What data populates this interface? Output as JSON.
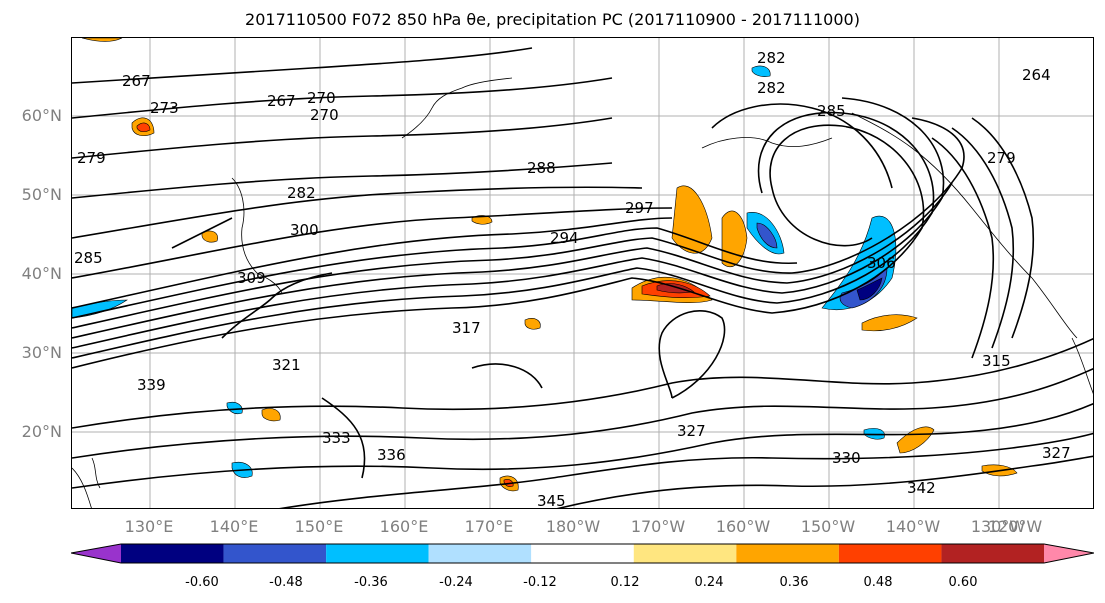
{
  "title": "2017110500 F072 850 hPa θe, precipitation PC (2017110900 - 2017111000)",
  "lat_labels": [
    "60°N",
    "50°N",
    "40°N",
    "30°N",
    "20°N"
  ],
  "lon_labels": [
    "130°E",
    "140°E",
    "150°E",
    "160°E",
    "170°E",
    "180°W",
    "170°W",
    "160°W",
    "150°W",
    "140°W",
    "130°W",
    "120°W"
  ],
  "contour_labels": [
    "267",
    "273",
    "279",
    "267",
    "270",
    "270",
    "288",
    "282",
    "300",
    "297",
    "294",
    "285",
    "309",
    "317",
    "321",
    "339",
    "333",
    "336",
    "345",
    "327",
    "330",
    "342",
    "327",
    "315",
    "306",
    "285",
    "282",
    "264",
    "279",
    "282"
  ],
  "colorbar": {
    "colors": [
      "#9933cc",
      "#000080",
      "#3355cc",
      "#00bfff",
      "#b0e0ff",
      "#ffffff",
      "#ffe680",
      "#ffa500",
      "#ff4000",
      "#b22222",
      "#ff88aa"
    ],
    "ticks": [
      "-0.60",
      "-0.48",
      "-0.36",
      "-0.24",
      "-0.12",
      "0.12",
      "0.24",
      "0.36",
      "0.48",
      "0.60"
    ]
  }
}
